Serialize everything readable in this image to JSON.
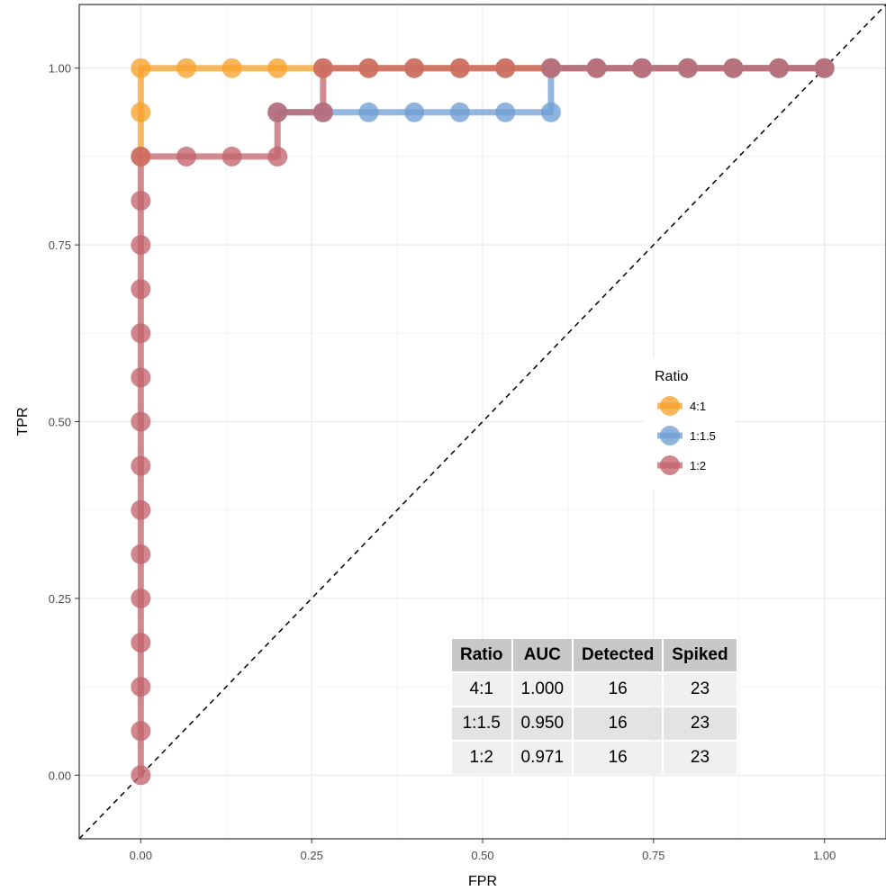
{
  "chart_data": {
    "type": "line",
    "title": "",
    "xlabel": "FPR",
    "ylabel": "TPR",
    "xlim": [
      -0.09,
      1.09
    ],
    "ylim": [
      -0.09,
      1.09
    ],
    "xticks": [
      0,
      0.25,
      0.5,
      0.75,
      1
    ],
    "yticks": [
      0,
      0.25,
      0.5,
      0.75,
      1
    ],
    "xtick_labels": [
      "0.00",
      "0.25",
      "0.50",
      "0.75",
      "1.00"
    ],
    "ytick_labels": [
      "0.00",
      "0.25",
      "0.50",
      "0.75",
      "1.00"
    ],
    "grid": true,
    "diagonal_reference": true,
    "legend": {
      "title": "Ratio",
      "placement": "right"
    },
    "series": [
      {
        "name": "4:1",
        "color": "#F7A12B",
        "x": [
          0,
          0,
          0,
          0.0667,
          0.1333,
          0.2,
          0.2667,
          0.3333,
          0.4,
          0.4667,
          0.5333,
          0.6,
          0.6667,
          0.7333,
          0.8,
          0.8667,
          0.9333,
          1
        ],
        "y": [
          0.875,
          0.9375,
          1,
          1,
          1,
          1,
          1,
          1,
          1,
          1,
          1,
          1,
          1,
          1,
          1,
          1,
          1,
          1
        ]
      },
      {
        "name": "1:1.5",
        "color": "#6F9FD3",
        "x": [
          0.2,
          0.2667,
          0.3333,
          0.4,
          0.4667,
          0.5333,
          0.6,
          0.6,
          0.6667,
          0.7333,
          0.8,
          0.8667,
          0.9333,
          1
        ],
        "y": [
          0.9375,
          0.9375,
          0.9375,
          0.9375,
          0.9375,
          0.9375,
          0.9375,
          1,
          1,
          1,
          1,
          1,
          1,
          1
        ]
      },
      {
        "name": "1:2",
        "color": "#C3646B",
        "x": [
          0,
          0,
          0,
          0,
          0,
          0,
          0,
          0,
          0,
          0,
          0,
          0,
          0,
          0,
          0,
          0.0667,
          0.1333,
          0.2,
          0.2,
          0.2667,
          0.2667,
          0.3333,
          0.4,
          0.4667,
          0.5333,
          0.6,
          0.6667,
          0.7333,
          0.8,
          0.8667,
          0.9333,
          1
        ],
        "y": [
          0,
          0.0625,
          0.125,
          0.1875,
          0.25,
          0.3125,
          0.375,
          0.4375,
          0.5,
          0.5625,
          0.625,
          0.6875,
          0.75,
          0.8125,
          0.875,
          0.875,
          0.875,
          0.875,
          0.9375,
          0.9375,
          1,
          1,
          1,
          1,
          1,
          1,
          1,
          1,
          1,
          1,
          1,
          1
        ]
      }
    ]
  },
  "table": {
    "headers": [
      "Ratio",
      "AUC",
      "Detected",
      "Spiked"
    ],
    "rows": [
      [
        "4:1",
        "1.000",
        "16",
        "23"
      ],
      [
        "1:1.5",
        "0.950",
        "16",
        "23"
      ],
      [
        "1:2",
        "0.971",
        "16",
        "23"
      ]
    ]
  }
}
